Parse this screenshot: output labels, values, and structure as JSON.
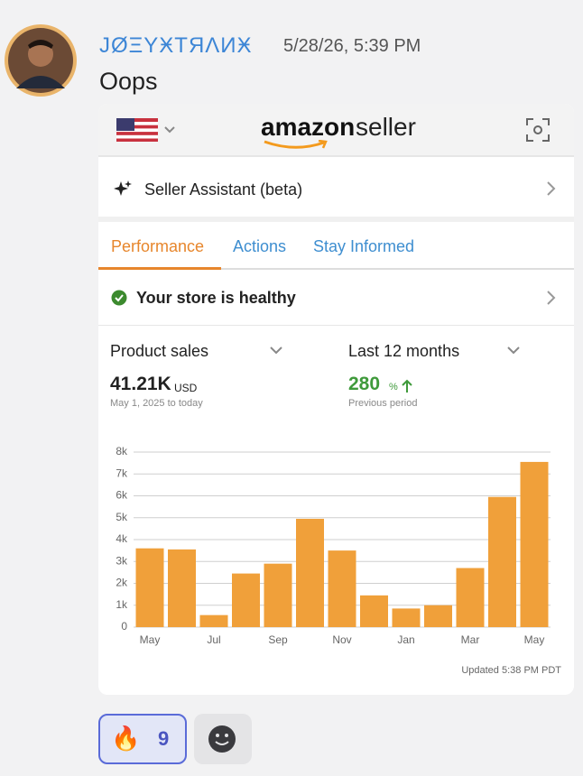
{
  "message": {
    "author": "JØΞYӾTЯΛИӾ",
    "timestamp": "5/28/26, 5:39 PM",
    "text": "Oops",
    "reactions": [
      {
        "emoji": "🔥",
        "count": 9
      }
    ]
  },
  "card": {
    "logo_brand": "amazon",
    "logo_product": "seller",
    "assistant": "Seller Assistant (beta)",
    "tabs": [
      "Performance",
      "Actions",
      "Stay Informed"
    ],
    "status": "Your store is healthy",
    "metric": "Product sales",
    "period": "Last 12 months",
    "total": "41.21K",
    "total_unit": "USD",
    "range": "May 1, 2025 to today",
    "change": 280,
    "change_unit": "%",
    "change_note": "Previous period",
    "updated": "Updated 5:38 PM PDT"
  },
  "chart_data": {
    "type": "bar",
    "categories": [
      "May",
      null,
      "Jul",
      null,
      "Sep",
      null,
      "Nov",
      null,
      "Jan",
      null,
      "Mar",
      null,
      "May"
    ],
    "values": [
      3600,
      3550,
      550,
      2450,
      2900,
      4950,
      3500,
      1450,
      850,
      1000,
      2700,
      5950,
      7550
    ],
    "color": "#f0a03a",
    "ylim": [
      0,
      8000
    ],
    "yticks": [
      0,
      {
        "value": 1000,
        "label": "1k"
      },
      {
        "value": 2000,
        "label": "2k"
      },
      {
        "value": 3000,
        "label": "3k"
      },
      {
        "value": 4000,
        "label": "4k"
      },
      {
        "value": 5000,
        "label": "5k"
      },
      {
        "value": 6000,
        "label": "6k"
      },
      {
        "value": 7000,
        "label": "7k"
      },
      {
        "value": 8000,
        "label": "8k"
      }
    ],
    "grid": true
  }
}
